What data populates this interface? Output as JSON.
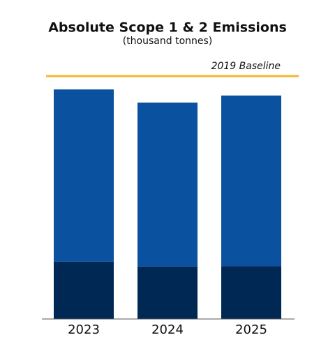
{
  "chart_data": {
    "type": "stacked-bar",
    "title": "Absolute Scope 1 & 2 Emissions",
    "subtitle": "(thousand tonnes)",
    "categories": [
      "2023",
      "2024",
      "2025"
    ],
    "series": [
      {
        "color": "#002855",
        "values": [
          23.6,
          21.6,
          21.8
        ]
      },
      {
        "color": "#0a52a0",
        "values": [
          70.9,
          67.5,
          70.2
        ]
      }
    ],
    "ylim": [
      0,
      100
    ],
    "baseline": {
      "label": "2019 Baseline",
      "value": 100,
      "color": "#f2b830"
    }
  }
}
